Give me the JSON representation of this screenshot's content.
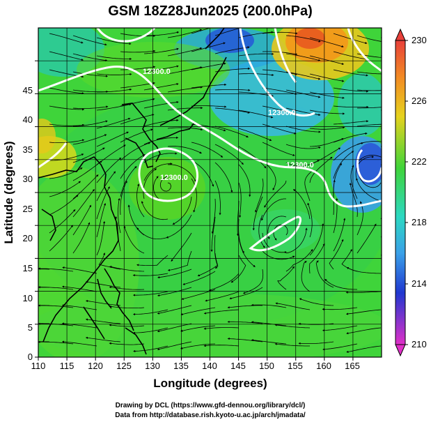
{
  "title": "GSM 18Z28Jun2025 (200.0hPa)",
  "xlabel": "Longitude (degrees)",
  "ylabel": "Latitude  (degrees)",
  "x_ticks": [
    "110",
    "115",
    "120",
    "125",
    "130",
    "135",
    "140",
    "145",
    "150",
    "155",
    "160",
    "165"
  ],
  "y_ticks": [
    "0",
    "5",
    "10",
    "15",
    "20",
    "25",
    "30",
    "35",
    "40",
    "45"
  ],
  "colorbar_labels": [
    "230",
    "226",
    "222",
    "218",
    "214",
    "210"
  ],
  "contour_labels": [
    "12300.0",
    "12300.0",
    "12300.0",
    "12300.0"
  ],
  "credit_line1": "Drawing by DCL (https://www.gfd-dennou.org/library/dcl/)",
  "credit_line2": "Data from http://database.rish.kyoto-u.ac.jp/arch/jmadata/",
  "colors": {
    "field_base": "#3fd43a",
    "warm": "#f29a1a",
    "cool": "#3ab7e6",
    "cold": "#2a52d8",
    "contour": "#ffffff"
  },
  "chart_data": {
    "type": "map",
    "title": "GSM 18Z28Jun2025 (200.0hPa)",
    "xlabel": "Longitude (degrees)",
    "ylabel": "Latitude  (degrees)",
    "xlim": [
      110,
      170
    ],
    "ylim": [
      0,
      50
    ],
    "colorbar": {
      "min": 210,
      "max": 230,
      "ticks": [
        230,
        226,
        222,
        218,
        214,
        210
      ]
    },
    "contour_level": 12300.0,
    "grid": true
  }
}
